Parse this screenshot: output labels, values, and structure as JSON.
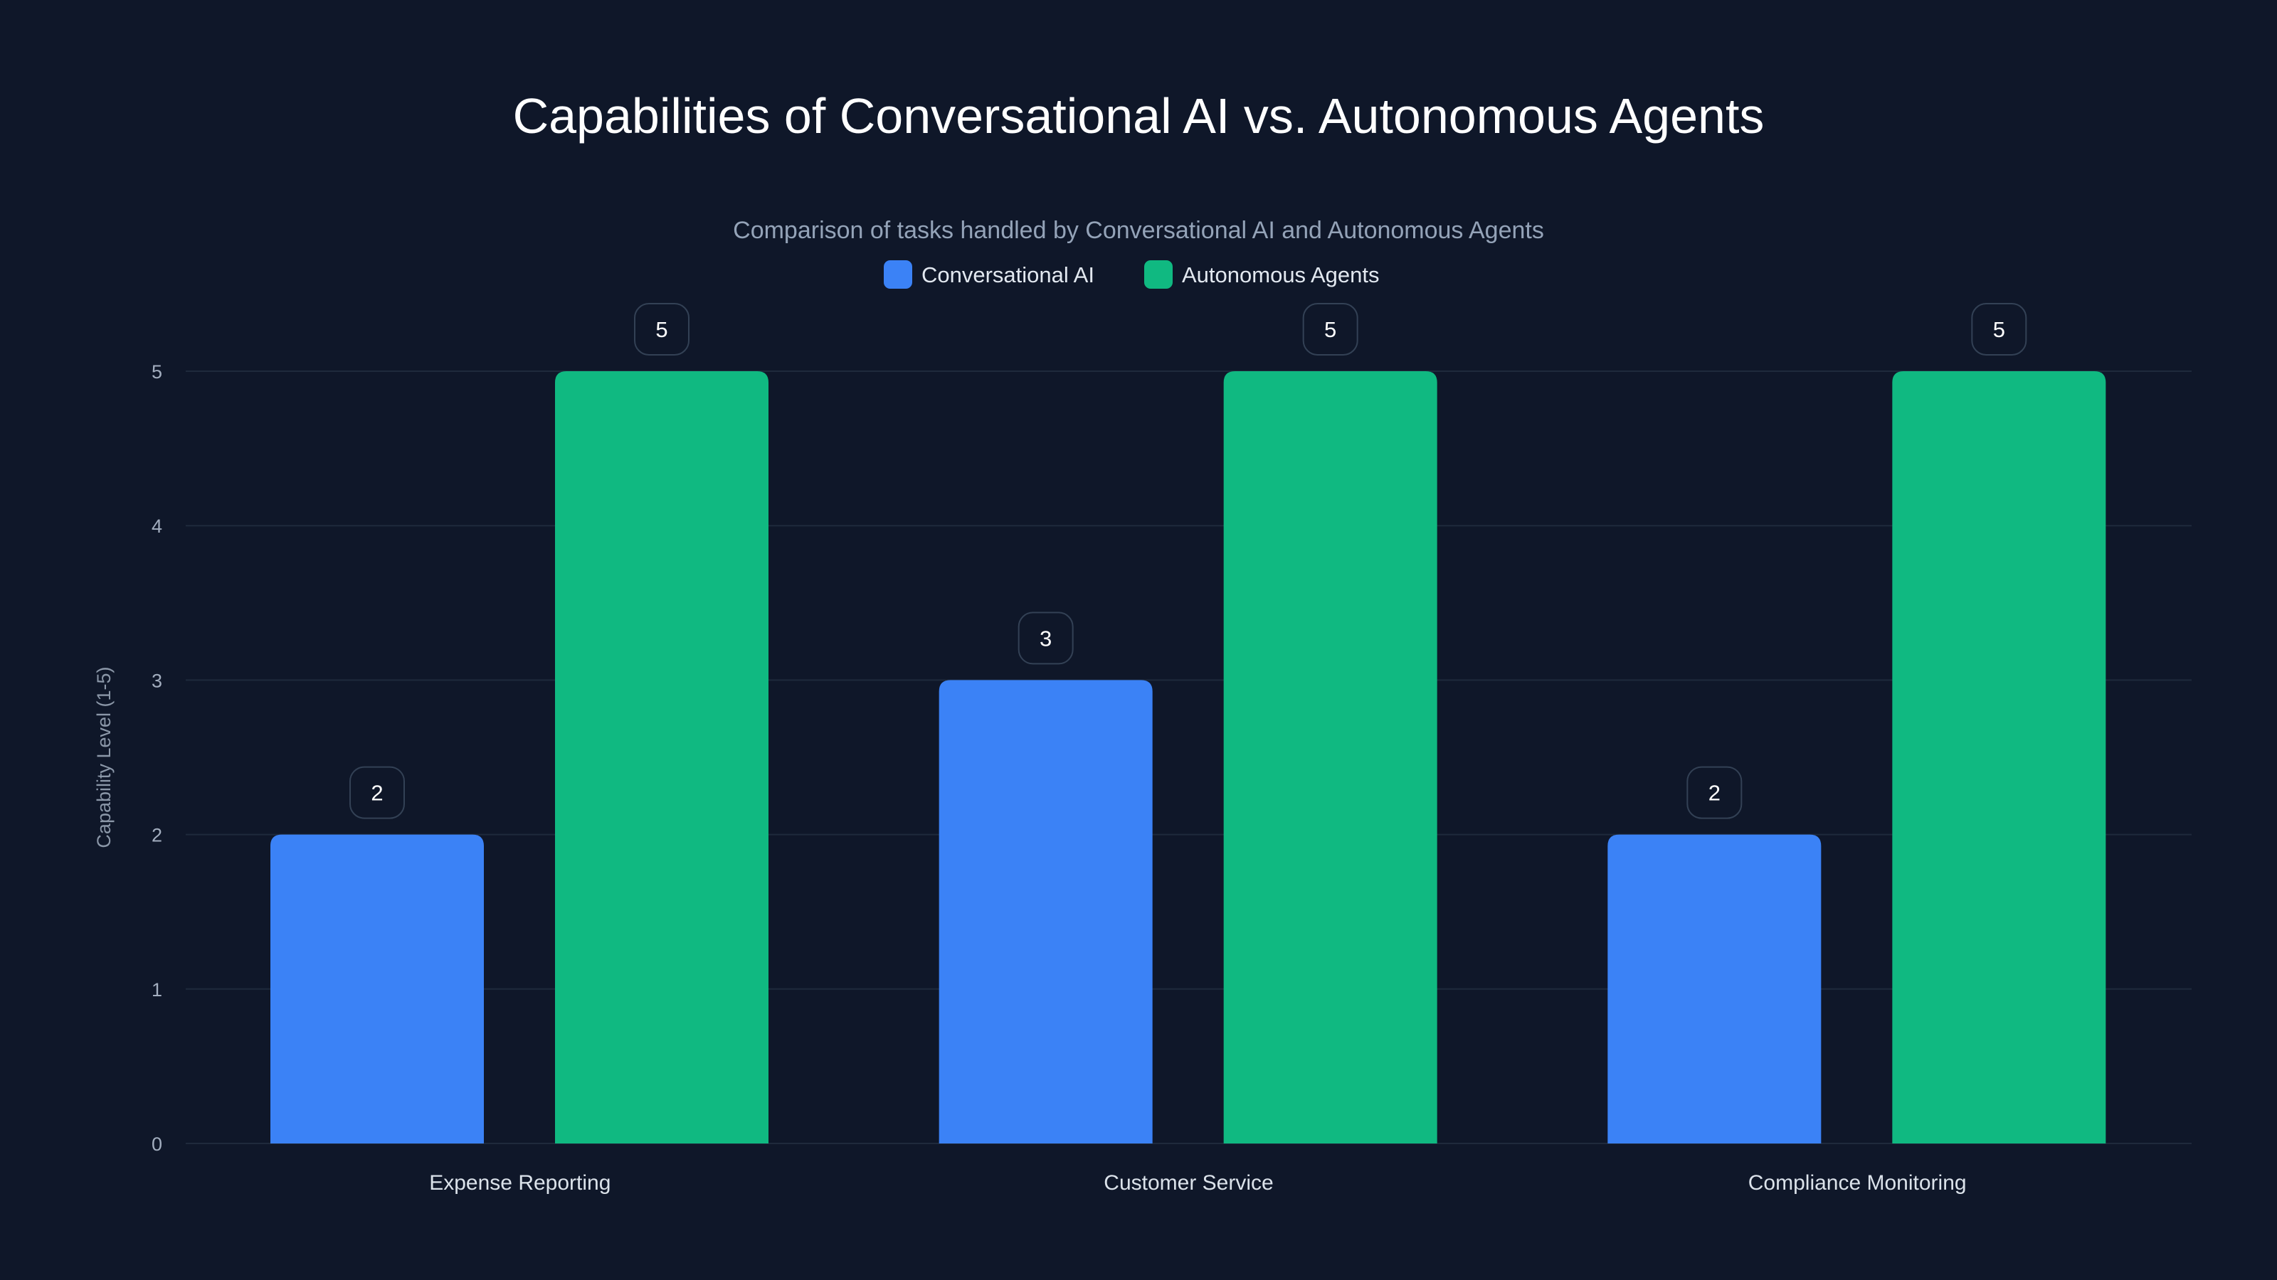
{
  "chart_data": {
    "type": "bar",
    "title": "Capabilities of Conversational AI vs. Autonomous Agents",
    "subtitle": "Comparison of tasks handled by Conversational AI and Autonomous Agents",
    "xlabel": "",
    "ylabel": "Capability Level (1-5)",
    "ylim": [
      0,
      5
    ],
    "yticks": [
      "0",
      "1",
      "2",
      "3",
      "4",
      "5"
    ],
    "grid": true,
    "legend_position": "top-center",
    "categories": [
      "Expense Reporting",
      "Customer Service",
      "Compliance Monitoring"
    ],
    "series": [
      {
        "name": "Conversational AI",
        "color": "#3b82f6",
        "values": [
          2,
          3,
          2
        ]
      },
      {
        "name": "Autonomous Agents",
        "color": "#10b981",
        "values": [
          5,
          5,
          5
        ]
      }
    ]
  }
}
